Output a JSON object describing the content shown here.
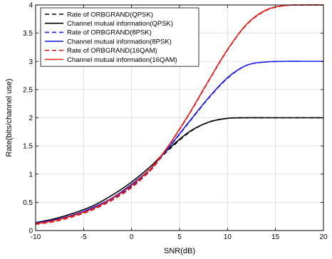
{
  "chart_data": {
    "type": "line",
    "title": "",
    "xlabel": "SNR(dB)",
    "ylabel": "Rate(bits/channel use)",
    "xlim": [
      -10,
      20
    ],
    "ylim": [
      0,
      4
    ],
    "xticks": [
      "-10",
      "-5",
      "0",
      "5",
      "10",
      "15",
      "20"
    ],
    "yticks": [
      "0",
      "0.5",
      "1",
      "1.5",
      "2",
      "2.5",
      "3",
      "3.5",
      "4"
    ],
    "grid": true,
    "legend_position": "top-left",
    "x": [
      -10,
      -8,
      -6,
      -4,
      -2,
      0,
      2,
      3,
      4,
      6,
      8,
      10,
      12,
      14,
      16,
      18,
      20
    ],
    "series": [
      {
        "name": "Rate of ORBGRAND(QPSK)",
        "color": "#000000",
        "dash": "dashed",
        "values": [
          0.12,
          0.18,
          0.27,
          0.39,
          0.56,
          0.78,
          1.08,
          1.28,
          1.45,
          1.74,
          1.92,
          1.99,
          2.0,
          2.0,
          2.0,
          2.0,
          2.0
        ]
      },
      {
        "name": "Channel mutual information(QPSK)",
        "color": "#000000",
        "dash": "solid",
        "values": [
          0.14,
          0.21,
          0.31,
          0.44,
          0.63,
          0.86,
          1.14,
          1.31,
          1.47,
          1.75,
          1.92,
          1.99,
          2.0,
          2.0,
          2.0,
          2.0,
          2.0
        ]
      },
      {
        "name": "Rate of ORBGRAND(8PSK)",
        "color": "#1f1fe0",
        "dash": "dashed",
        "values": [
          0.12,
          0.17,
          0.26,
          0.38,
          0.55,
          0.77,
          1.07,
          1.28,
          1.49,
          1.92,
          2.34,
          2.7,
          2.93,
          2.99,
          3.0,
          3.0,
          3.0
        ]
      },
      {
        "name": "Channel mutual information(8PSK)",
        "color": "#1f1fe0",
        "dash": "solid",
        "values": [
          0.13,
          0.19,
          0.28,
          0.41,
          0.58,
          0.82,
          1.1,
          1.3,
          1.5,
          1.93,
          2.35,
          2.71,
          2.93,
          2.99,
          3.0,
          3.0,
          3.0
        ]
      },
      {
        "name": "Rate of ORBGRAND(16QAM)",
        "color": "#e01f1f",
        "dash": "dashed",
        "values": [
          0.11,
          0.16,
          0.25,
          0.37,
          0.54,
          0.76,
          1.07,
          1.29,
          1.53,
          2.06,
          2.64,
          3.2,
          3.65,
          3.9,
          3.99,
          4.0,
          4.0
        ]
      },
      {
        "name": "Channel mutual information(16QAM)",
        "color": "#e01f1f",
        "dash": "solid",
        "values": [
          0.12,
          0.18,
          0.27,
          0.39,
          0.57,
          0.8,
          1.1,
          1.31,
          1.54,
          2.07,
          2.65,
          3.21,
          3.66,
          3.91,
          3.99,
          4.0,
          4.0
        ]
      }
    ]
  }
}
